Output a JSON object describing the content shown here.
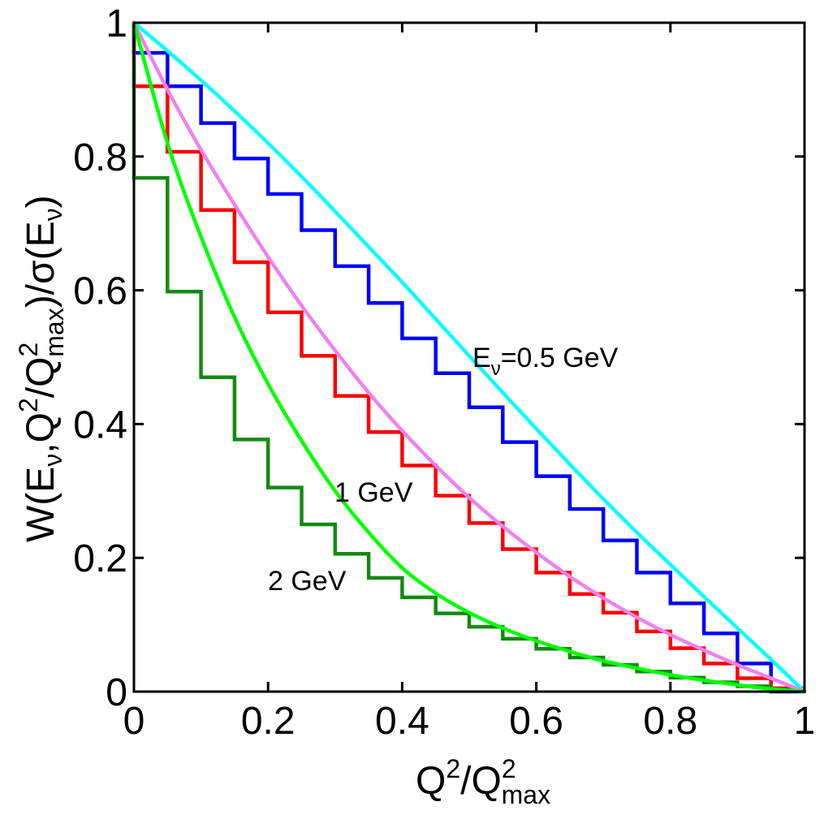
{
  "chart_data": {
    "type": "line",
    "xlabel": {
      "base": "Q",
      "sup1": "2",
      "mid": "/Q",
      "sup2": "2",
      "sub": "max"
    },
    "ylabel": {
      "p1": "W(E",
      "s1": "ν",
      "p2": ",Q",
      "sup1": "2",
      "p3": "/Q",
      "sup2": "2",
      "sub2": "max",
      "p4": ")/σ(E",
      "s3": "ν",
      "p5": ")"
    },
    "xlim": [
      0,
      1
    ],
    "ylim": [
      0,
      1
    ],
    "x_ticks": [
      "0",
      "0.2",
      "0.4",
      "0.6",
      "0.8",
      "1"
    ],
    "y_ticks": [
      "0",
      "0.2",
      "0.4",
      "0.6",
      "0.8",
      "1"
    ],
    "x_tick_values": [
      0,
      0.2,
      0.4,
      0.6,
      0.8,
      1
    ],
    "y_tick_values": [
      0,
      0.2,
      0.4,
      0.6,
      0.8,
      1
    ],
    "grid": false,
    "annotations": {
      "e05": {
        "base": "E",
        "sub": "ν",
        "rest": "=0.5 GeV"
      },
      "e1": "1 GeV",
      "e2": "2 GeV"
    },
    "bin_edges": [
      0,
      0.05,
      0.1,
      0.15,
      0.2,
      0.25,
      0.3,
      0.35,
      0.4,
      0.45,
      0.5,
      0.55,
      0.6,
      0.65,
      0.7,
      0.75,
      0.8,
      0.85,
      0.9,
      0.95,
      1.0
    ],
    "step_series": [
      {
        "color": "#0000ff",
        "values": [
          0.955,
          0.905,
          0.85,
          0.797,
          0.744,
          0.69,
          0.636,
          0.581,
          0.528,
          0.476,
          0.425,
          0.373,
          0.322,
          0.273,
          0.226,
          0.178,
          0.132,
          0.087,
          0.042,
          0.0
        ]
      },
      {
        "color": "#ff0000",
        "values": [
          0.905,
          0.807,
          0.72,
          0.642,
          0.567,
          0.502,
          0.442,
          0.388,
          0.338,
          0.293,
          0.252,
          0.213,
          0.178,
          0.146,
          0.118,
          0.09,
          0.065,
          0.042,
          0.02,
          0.005
        ]
      },
      {
        "color": "#138a13",
        "values": [
          0.768,
          0.598,
          0.47,
          0.377,
          0.305,
          0.25,
          0.206,
          0.17,
          0.141,
          0.117,
          0.097,
          0.079,
          0.064,
          0.051,
          0.04,
          0.03,
          0.021,
          0.014,
          0.008,
          0.003
        ]
      }
    ],
    "curves": [
      {
        "color": "#00ffff",
        "x": [
          0,
          0.05,
          0.1,
          0.15,
          0.2,
          0.25,
          0.3,
          0.35,
          0.4,
          0.45,
          0.5,
          0.55,
          0.6,
          0.65,
          0.7,
          0.75,
          0.8,
          0.85,
          0.9,
          0.95,
          1.0
        ],
        "y": [
          1.0,
          0.958,
          0.914,
          0.868,
          0.82,
          0.77,
          0.718,
          0.665,
          0.612,
          0.557,
          0.502,
          0.447,
          0.393,
          0.34,
          0.288,
          0.238,
          0.19,
          0.142,
          0.095,
          0.048,
          0.0
        ]
      },
      {
        "color": "#ee82ee",
        "x": [
          0,
          0.05,
          0.1,
          0.15,
          0.2,
          0.25,
          0.3,
          0.35,
          0.4,
          0.45,
          0.5,
          0.55,
          0.6,
          0.65,
          0.7,
          0.75,
          0.8,
          0.85,
          0.9,
          0.95,
          1.0
        ],
        "y": [
          1.0,
          0.9,
          0.81,
          0.728,
          0.65,
          0.577,
          0.51,
          0.447,
          0.39,
          0.338,
          0.29,
          0.247,
          0.208,
          0.172,
          0.14,
          0.111,
          0.085,
          0.062,
          0.04,
          0.02,
          0.0
        ]
      },
      {
        "color": "#00ff00",
        "x": [
          0,
          0.05,
          0.1,
          0.15,
          0.2,
          0.25,
          0.3,
          0.35,
          0.4,
          0.45,
          0.5,
          0.55,
          0.6,
          0.65,
          0.7,
          0.75,
          0.8,
          0.85,
          0.9,
          0.95,
          1.0
        ],
        "y": [
          1.0,
          0.82,
          0.68,
          0.56,
          0.46,
          0.375,
          0.3,
          0.238,
          0.185,
          0.147,
          0.118,
          0.095,
          0.076,
          0.06,
          0.046,
          0.035,
          0.025,
          0.017,
          0.01,
          0.004,
          0.0
        ]
      }
    ]
  }
}
